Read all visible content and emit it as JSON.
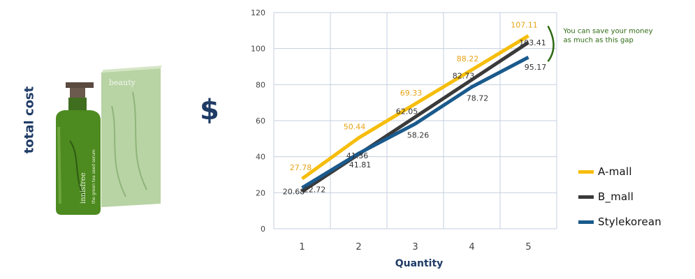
{
  "chart_data": {
    "type": "line",
    "categories": [
      "1",
      "2",
      "3",
      "4",
      "5"
    ],
    "xlabel": "Quantity",
    "ylabel": "total cost",
    "ylabel_symbol": "$",
    "ylim": [
      0,
      120
    ],
    "yticks": [
      "0",
      "20",
      "40",
      "60",
      "80",
      "100",
      "120"
    ],
    "grid": true,
    "legend_position": "right",
    "series": [
      {
        "name": "A-mall",
        "color": "#f6bd0b",
        "label_color": "#e8a317",
        "values": [
          27.78,
          50.44,
          69.33,
          88.22,
          107.11
        ],
        "labels": [
          "27.78",
          "50.44",
          "69.33",
          "88.22",
          "107.11"
        ]
      },
      {
        "name": "B_mall",
        "color": "#3a3a3a",
        "label_color": "#333333",
        "values": [
          20.68,
          41.36,
          62.05,
          82.73,
          103.41
        ],
        "labels": [
          "20.68",
          "41.36",
          "62.05",
          "82.73",
          "103.41"
        ]
      },
      {
        "name": "Stylekorean",
        "color": "#1a5a8c",
        "label_color": "#333333",
        "values": [
          22.72,
          41.81,
          58.26,
          78.72,
          95.17
        ],
        "labels": [
          "22.72",
          "41.81",
          "58.26",
          "78.72",
          "95.17"
        ]
      }
    ],
    "annotation": {
      "text_lines": [
        "You can save your money",
        "as much as this gap"
      ],
      "color": "#2d6a12"
    }
  },
  "product": {
    "brand_text": "innisfree",
    "product_text": "the green tea seed serum",
    "box_text": "beauty"
  },
  "colors": {
    "axis_text": "#444444",
    "grid": "#c6cfe0",
    "title_blue": "#1f3b66"
  }
}
